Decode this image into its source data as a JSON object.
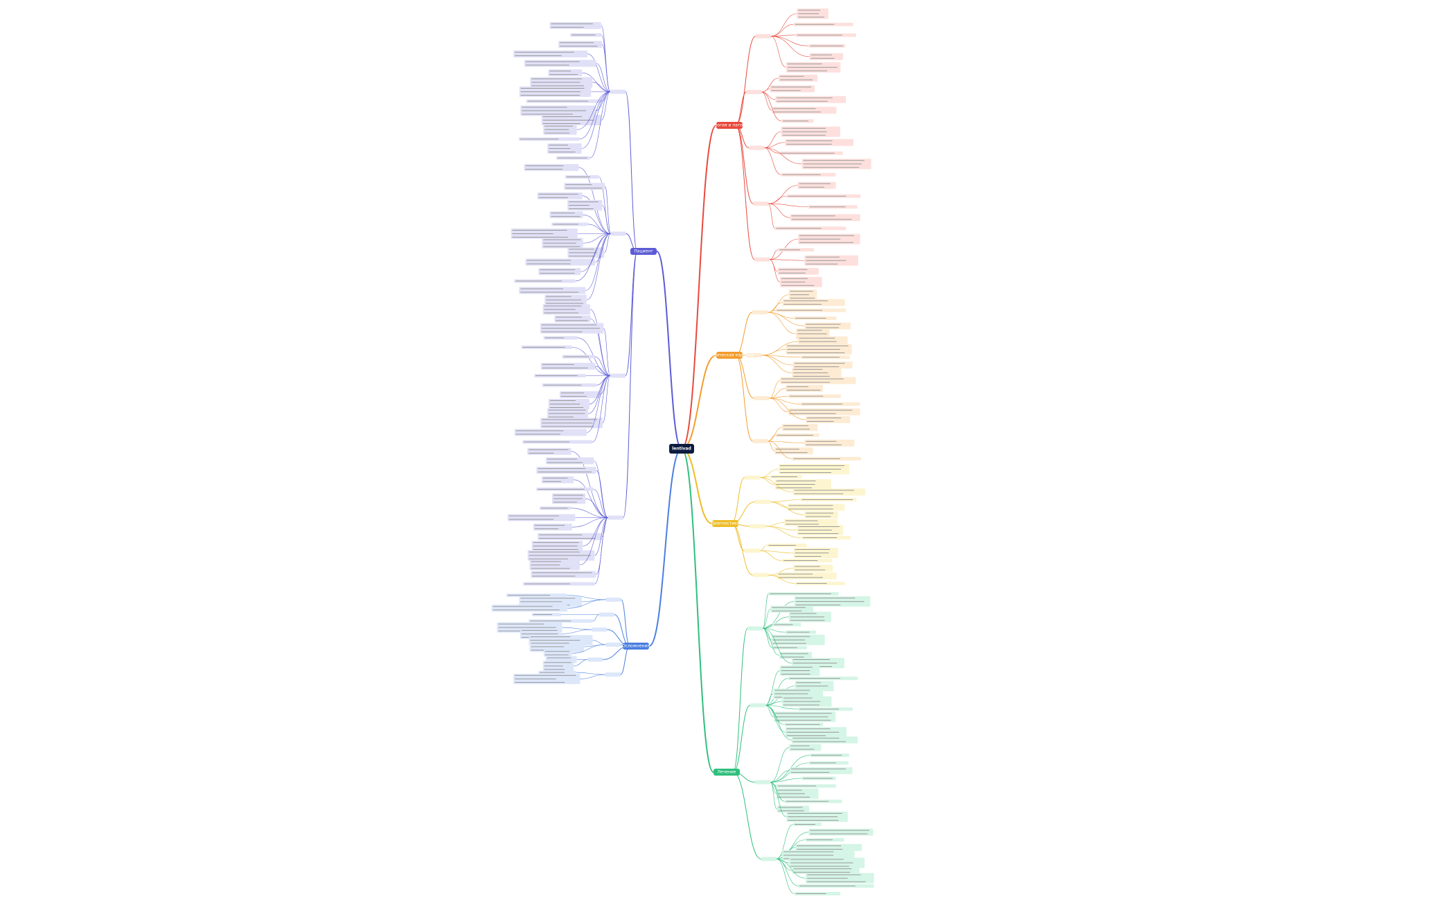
{
  "center": {
    "label": "lentivad"
  },
  "branches": [
    {
      "label": "Этиология и патогенез"
    },
    {
      "label": "Клиническая картина"
    },
    {
      "label": "Диагностика"
    },
    {
      "label": "Лечение"
    },
    {
      "label": "Пациент"
    },
    {
      "label": "Осложнения"
    }
  ]
}
